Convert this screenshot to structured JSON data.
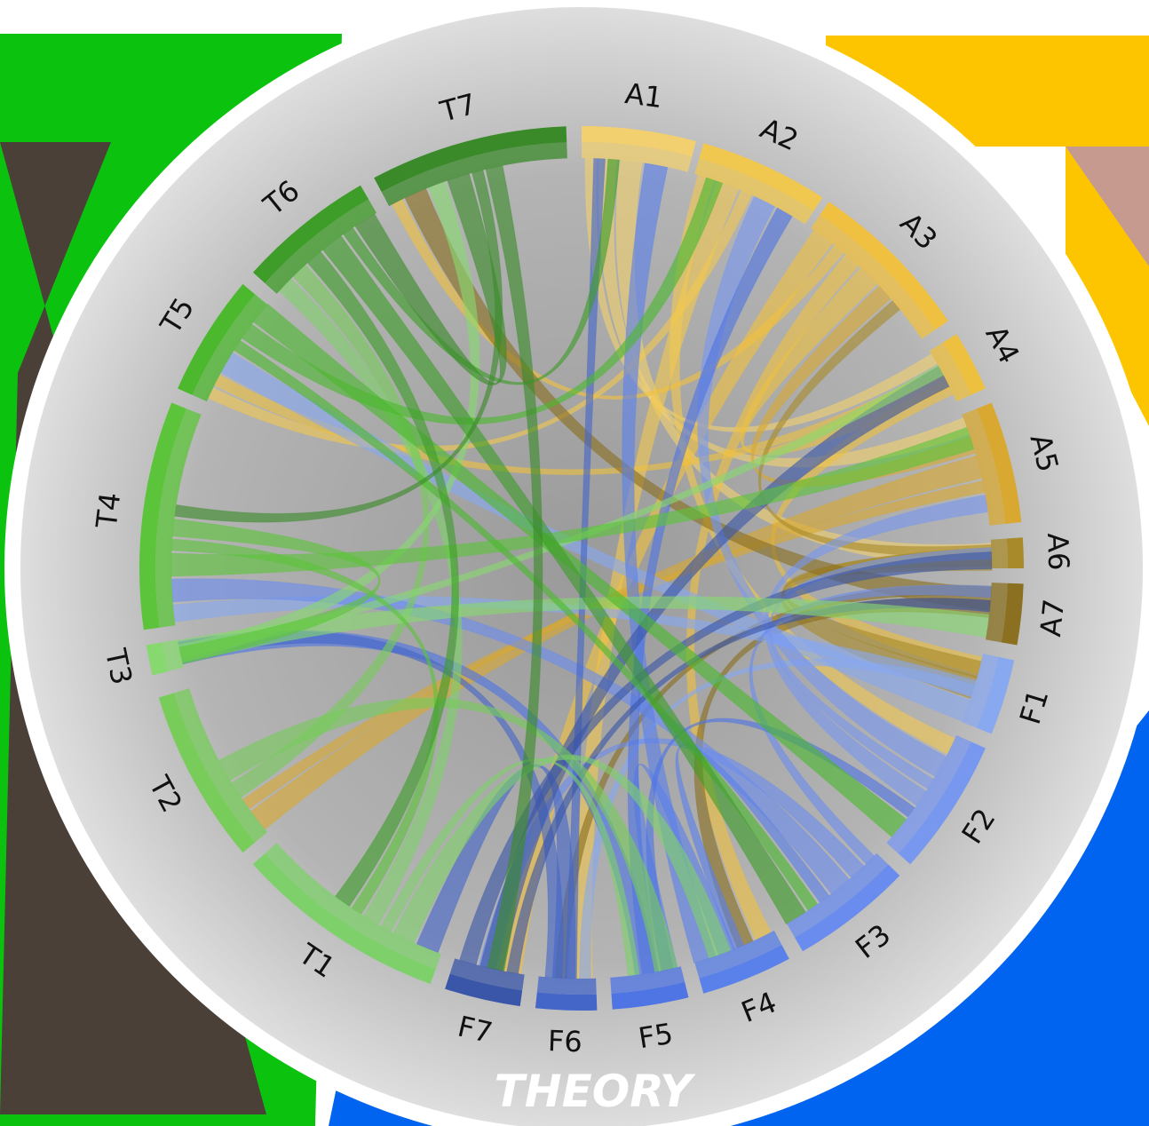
{
  "title": "THEORY",
  "nodes": [
    {
      "label": "A1"
    },
    {
      "label": "A2"
    },
    {
      "label": "A3"
    },
    {
      "label": "A4"
    },
    {
      "label": "A5"
    },
    {
      "label": "A6"
    },
    {
      "label": "A7"
    },
    {
      "label": "F1"
    },
    {
      "label": "F2"
    },
    {
      "label": "F3"
    },
    {
      "label": "F4"
    },
    {
      "label": "F5"
    },
    {
      "label": "F6"
    },
    {
      "label": "F7"
    },
    {
      "label": "T1"
    },
    {
      "label": "T2"
    },
    {
      "label": "T3"
    },
    {
      "label": "T4"
    },
    {
      "label": "T5"
    },
    {
      "label": "T6"
    },
    {
      "label": "T7"
    }
  ]
}
